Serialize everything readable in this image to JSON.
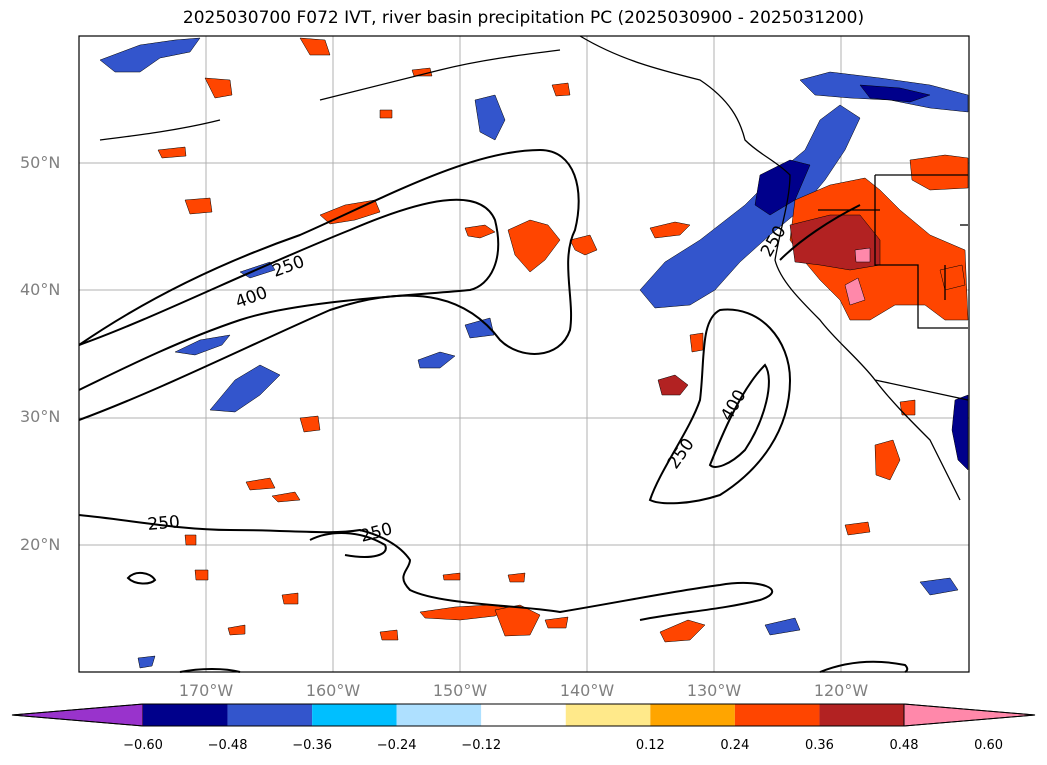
{
  "title": "2025030700 F072 IVT, river basin precipitation PC (2025030900 - 2025031200)",
  "lat_labels": [
    "50°N",
    "40°N",
    "30°N",
    "20°N"
  ],
  "lon_labels": [
    "170°W",
    "160°W",
    "150°W",
    "140°W",
    "130°W",
    "120°W"
  ],
  "contour_labels": [
    "250",
    "400",
    "250",
    "400",
    "250",
    "250",
    "250"
  ],
  "colorbar": {
    "ticks": [
      "−0.60",
      "−0.48",
      "−0.36",
      "−0.24",
      "−0.12",
      "0.12",
      "0.24",
      "0.36",
      "0.48",
      "0.60"
    ],
    "colors": [
      "#9933cc",
      "#00008b",
      "#3355cc",
      "#00bfff",
      "#aee0ff",
      "#ffffff",
      "#ffe98a",
      "#ffa500",
      "#ff4500",
      "#b22222",
      "#ff88aa"
    ]
  }
}
